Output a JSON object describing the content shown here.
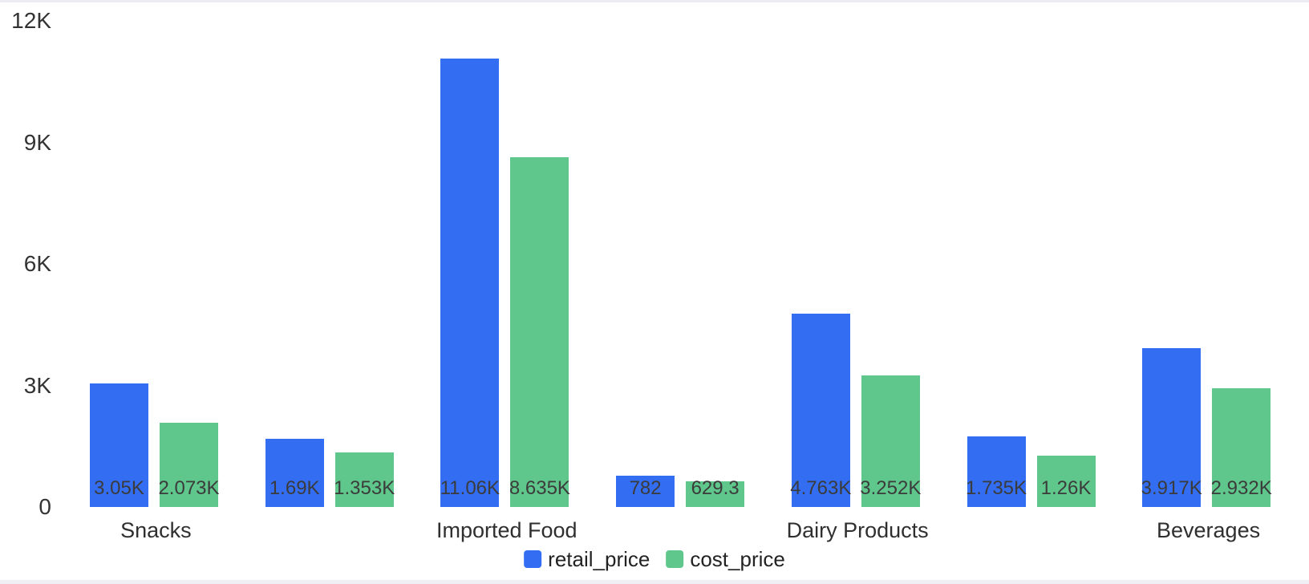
{
  "chart_data": {
    "type": "bar",
    "title": "",
    "xlabel": "",
    "ylabel": "",
    "categories": [
      "Snacks",
      "",
      "Imported Food",
      "",
      "Dairy Products",
      "",
      "Beverages"
    ],
    "visible_x_axis_labels": [
      "Snacks",
      "Imported Food",
      "Dairy Products",
      "Beverages"
    ],
    "series": [
      {
        "name": "retail_price",
        "color": "#336EF2",
        "values": [
          3050,
          1690,
          11060,
          782,
          4763,
          1735,
          3917
        ],
        "labels": [
          "3.05K",
          "1.69K",
          "11.06K",
          "782",
          "4.763K",
          "1.735K",
          "3.917K"
        ]
      },
      {
        "name": "cost_price",
        "color": "#5FC78B",
        "values": [
          2073,
          1353,
          8635,
          629.3,
          3252,
          1260,
          2932
        ],
        "labels": [
          "2.073K",
          "1.353K",
          "8.635K",
          "629.3",
          "3.252K",
          "1.26K",
          "2.932K"
        ]
      }
    ],
    "y_ticks": [
      {
        "label": "0",
        "value": 0
      },
      {
        "label": "3K",
        "value": 3000
      },
      {
        "label": "6K",
        "value": 6000
      },
      {
        "label": "9K",
        "value": 9000
      },
      {
        "label": "12K",
        "value": 12000
      }
    ],
    "ylim": [
      0,
      12000
    ],
    "grid": false,
    "axis_lines": false,
    "value_label_position": "inside-bottom",
    "legend_position": "bottom-center",
    "legend": [
      "retail_price",
      "cost_price"
    ]
  },
  "colors": {
    "series_retail_price": "#336EF2",
    "series_cost_price": "#5FC78B",
    "value_label_text": "#3b3b3b",
    "axis_text": "#333333",
    "legend_text": "#222222",
    "background": "#ffffff",
    "top_edge_strip": "#ececf2",
    "bottom_edge_strip": "#f0f0f4"
  }
}
